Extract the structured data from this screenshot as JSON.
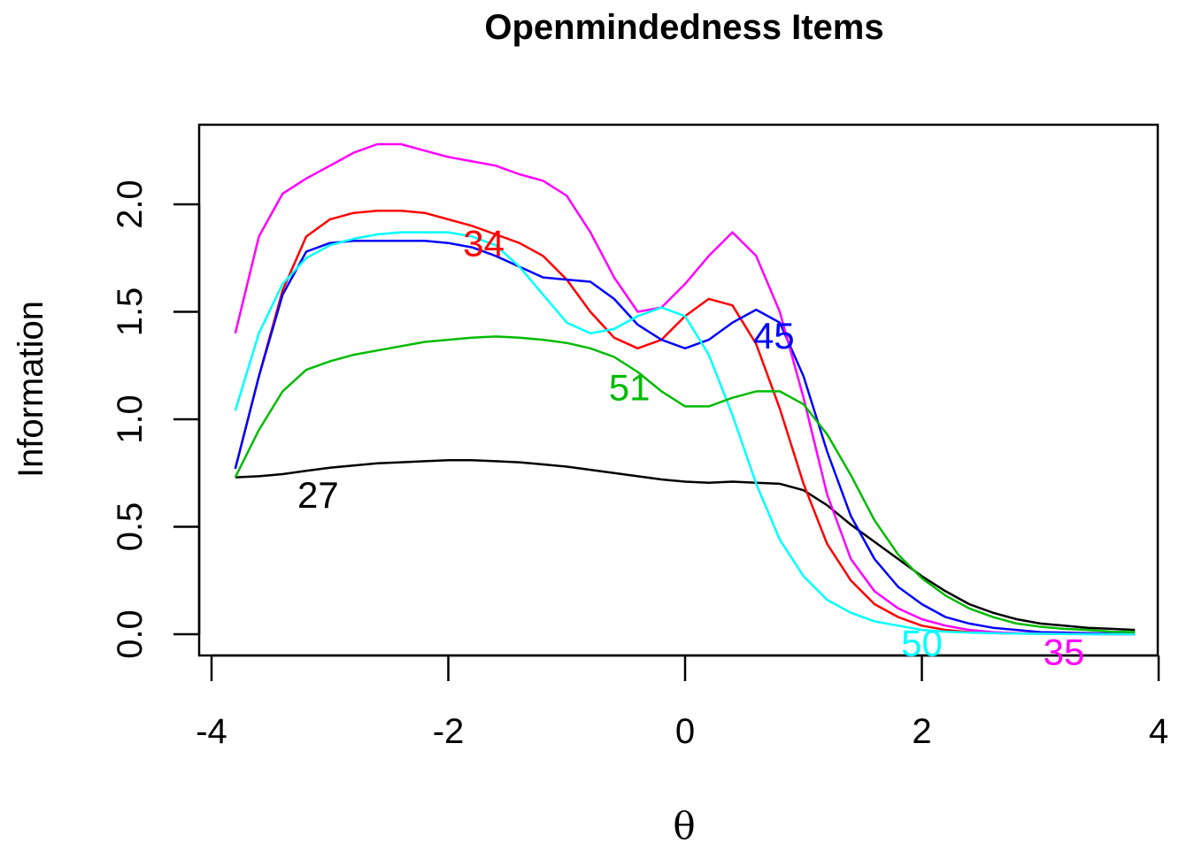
{
  "chart_data": {
    "type": "line",
    "title": "Openmindedness Items",
    "xlabel": "θ",
    "ylabel": "Information",
    "xlim": [
      -4,
      4
    ],
    "ylim": [
      0,
      2.35
    ],
    "xticks": [
      -4,
      -2,
      0,
      2,
      4
    ],
    "xtick_labels": [
      "-4",
      "-2",
      "0",
      "2",
      "4"
    ],
    "yticks": [
      0,
      0.5,
      1,
      1.5,
      2
    ],
    "ytick_labels": [
      "0.0",
      "0.5",
      "1.0",
      "1.5",
      "2.0"
    ],
    "grid": false,
    "legend": "none",
    "x": [
      -3.8,
      -3.6,
      -3.4,
      -3.2,
      -3.0,
      -2.8,
      -2.6,
      -2.4,
      -2.2,
      -2.0,
      -1.8,
      -1.6,
      -1.4,
      -1.2,
      -1.0,
      -0.8,
      -0.6,
      -0.4,
      -0.2,
      0.0,
      0.2,
      0.4,
      0.6,
      0.8,
      1.0,
      1.2,
      1.4,
      1.6,
      1.8,
      2.0,
      2.2,
      2.4,
      2.6,
      2.8,
      3.0,
      3.2,
      3.4,
      3.6,
      3.8
    ],
    "series": [
      {
        "name": "27",
        "color": "#000000",
        "label_x": -3.1,
        "label_y": 0.65,
        "values": [
          0.73,
          0.735,
          0.745,
          0.76,
          0.775,
          0.785,
          0.795,
          0.8,
          0.805,
          0.81,
          0.81,
          0.805,
          0.8,
          0.79,
          0.78,
          0.765,
          0.75,
          0.735,
          0.72,
          0.71,
          0.705,
          0.71,
          0.705,
          0.7,
          0.67,
          0.6,
          0.51,
          0.43,
          0.35,
          0.27,
          0.2,
          0.14,
          0.1,
          0.07,
          0.05,
          0.04,
          0.03,
          0.025,
          0.02
        ]
      },
      {
        "name": "34",
        "color": "#ff0000",
        "label_x": -1.7,
        "label_y": 1.82,
        "values": [
          0.77,
          1.2,
          1.6,
          1.85,
          1.93,
          1.96,
          1.97,
          1.97,
          1.96,
          1.93,
          1.9,
          1.86,
          1.82,
          1.76,
          1.65,
          1.5,
          1.38,
          1.33,
          1.37,
          1.48,
          1.56,
          1.53,
          1.35,
          1.05,
          0.7,
          0.42,
          0.25,
          0.14,
          0.08,
          0.04,
          0.02,
          0.01,
          0.005,
          0.003,
          0.002,
          0.001,
          0.001,
          0.0,
          0.0
        ]
      },
      {
        "name": "45",
        "color": "#0000ff",
        "label_x": 0.75,
        "label_y": 1.39,
        "values": [
          0.77,
          1.2,
          1.58,
          1.78,
          1.82,
          1.83,
          1.83,
          1.83,
          1.83,
          1.82,
          1.8,
          1.76,
          1.71,
          1.66,
          1.65,
          1.64,
          1.56,
          1.44,
          1.37,
          1.33,
          1.37,
          1.45,
          1.51,
          1.45,
          1.2,
          0.85,
          0.55,
          0.35,
          0.22,
          0.14,
          0.08,
          0.05,
          0.03,
          0.02,
          0.01,
          0.008,
          0.005,
          0.003,
          0.002
        ]
      },
      {
        "name": "35",
        "color": "#ff00ff",
        "label_x": 3.2,
        "label_y": -0.08,
        "values": [
          1.4,
          1.85,
          2.05,
          2.12,
          2.18,
          2.24,
          2.28,
          2.28,
          2.25,
          2.22,
          2.2,
          2.18,
          2.14,
          2.11,
          2.04,
          1.87,
          1.66,
          1.5,
          1.52,
          1.63,
          1.76,
          1.87,
          1.76,
          1.5,
          1.1,
          0.65,
          0.35,
          0.2,
          0.12,
          0.07,
          0.04,
          0.02,
          0.01,
          0.005,
          0.003,
          0.002,
          0.001,
          0.0,
          0.0
        ]
      },
      {
        "name": "50",
        "color": "#00ffff",
        "label_x": 2.0,
        "label_y": -0.04,
        "values": [
          1.04,
          1.4,
          1.63,
          1.75,
          1.81,
          1.84,
          1.86,
          1.87,
          1.87,
          1.87,
          1.85,
          1.81,
          1.71,
          1.58,
          1.45,
          1.4,
          1.42,
          1.48,
          1.52,
          1.48,
          1.3,
          1.02,
          0.7,
          0.44,
          0.27,
          0.16,
          0.1,
          0.06,
          0.04,
          0.02,
          0.012,
          0.008,
          0.005,
          0.003,
          0.002,
          0.001,
          0.0,
          0.0,
          0.0
        ]
      },
      {
        "name": "51",
        "color": "#00bb00",
        "label_x": -0.47,
        "label_y": 1.15,
        "values": [
          0.73,
          0.95,
          1.13,
          1.23,
          1.27,
          1.3,
          1.32,
          1.34,
          1.36,
          1.37,
          1.38,
          1.385,
          1.38,
          1.37,
          1.355,
          1.33,
          1.29,
          1.22,
          1.13,
          1.06,
          1.06,
          1.1,
          1.13,
          1.13,
          1.07,
          0.93,
          0.74,
          0.53,
          0.37,
          0.26,
          0.18,
          0.12,
          0.08,
          0.05,
          0.035,
          0.025,
          0.02,
          0.012,
          0.01
        ]
      }
    ]
  }
}
